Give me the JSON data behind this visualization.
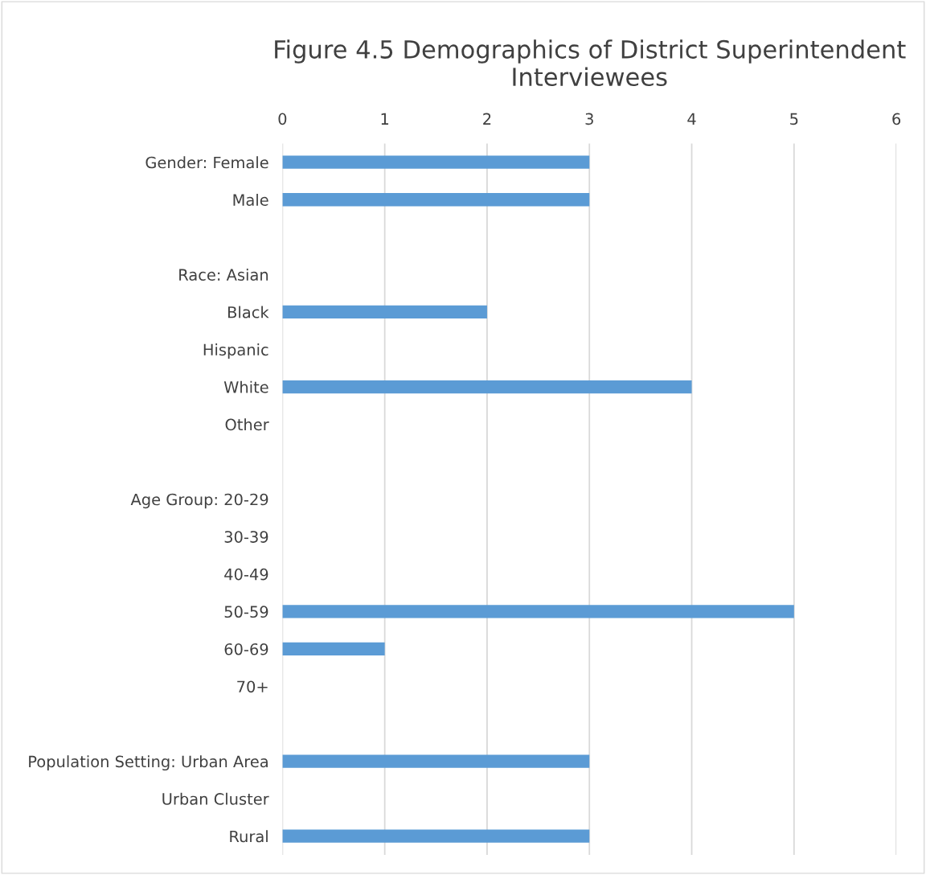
{
  "chart_data": {
    "type": "bar",
    "orientation": "horizontal",
    "title": "Figure 4.5 Demographics of District Superintendent Interviewees",
    "categories": [
      "Gender: Female",
      "Male",
      null,
      "Race: Asian",
      "Black",
      "Hispanic",
      "White",
      "Other",
      null,
      "Age Group: 20-29",
      "30-39",
      "40-49",
      "50-59",
      "60-69",
      "70+",
      null,
      "Population Setting: Urban Area",
      "Urban Cluster",
      "Rural"
    ],
    "values": [
      3,
      3,
      null,
      0,
      2,
      0,
      4,
      0,
      null,
      0,
      0,
      0,
      5,
      1,
      0,
      null,
      3,
      0,
      3
    ],
    "color": "#5b9bd5",
    "xlim": [
      0,
      6
    ],
    "xticks": [
      0,
      1,
      2,
      3,
      4,
      5,
      6
    ],
    "grid": "x",
    "legend": false
  }
}
